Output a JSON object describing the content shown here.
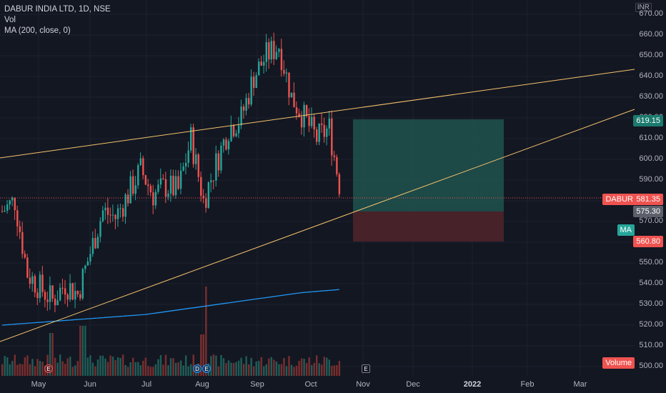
{
  "legend": {
    "symbol": "DABUR INDIA LTD, 1D, NSE",
    "vol": "Vol",
    "ma": "MA (200, close, 0)"
  },
  "currency": "INR",
  "price_axis": [
    "670.00",
    "660.00",
    "650.00",
    "640.00",
    "630.00",
    "620.00",
    "610.00",
    "600.00",
    "590.00",
    "580.00",
    "570.00",
    "560.00",
    "550.00",
    "540.00",
    "530.00",
    "520.00",
    "510.00",
    "500.00"
  ],
  "time_axis": [
    "May",
    "Jun",
    "Jul",
    "Aug",
    "Sep",
    "Oct",
    "Nov",
    "Dec",
    "2022",
    "Feb",
    "Mar"
  ],
  "tags": {
    "target": "619.15",
    "symbol_name": "DABUR",
    "last_price": "581.35",
    "entry": "575.30",
    "ma_name": "MA",
    "stop": "560.80",
    "volume": "Volume"
  },
  "events": [
    {
      "label": "E"
    },
    {
      "label": "D"
    },
    {
      "label": "E"
    },
    {
      "label": "E"
    }
  ],
  "colors": {
    "up": "#26a69a",
    "down": "#ef5350",
    "ma": "#2196f3",
    "trend": "#f5c26b",
    "target_zone": "#1f4f4b",
    "stop_zone": "#4a2329"
  },
  "chart_data": {
    "type": "candlestick",
    "instrument": "DABUR INDIA LTD",
    "interval": "1D",
    "exchange": "NSE",
    "ylim": [
      500,
      670
    ],
    "last": 581.35,
    "position": {
      "entry": 575.3,
      "target": 619.15,
      "stop": 560.8
    },
    "approx_closes": [
      {
        "date": "2021-04-20",
        "close": 575
      },
      {
        "date": "2021-04-27",
        "close": 580
      },
      {
        "date": "2021-05-04",
        "close": 545
      },
      {
        "date": "2021-05-11",
        "close": 538
      },
      {
        "date": "2021-05-18",
        "close": 532
      },
      {
        "date": "2021-05-25",
        "close": 540
      },
      {
        "date": "2021-06-01",
        "close": 535
      },
      {
        "date": "2021-06-08",
        "close": 555
      },
      {
        "date": "2021-06-15",
        "close": 575
      },
      {
        "date": "2021-06-22",
        "close": 572
      },
      {
        "date": "2021-06-29",
        "close": 583
      },
      {
        "date": "2021-07-06",
        "close": 595
      },
      {
        "date": "2021-07-13",
        "close": 583
      },
      {
        "date": "2021-07-20",
        "close": 587
      },
      {
        "date": "2021-07-27",
        "close": 585
      },
      {
        "date": "2021-08-03",
        "close": 610
      },
      {
        "date": "2021-08-10",
        "close": 580
      },
      {
        "date": "2021-08-17",
        "close": 598
      },
      {
        "date": "2021-08-24",
        "close": 615
      },
      {
        "date": "2021-08-31",
        "close": 620
      },
      {
        "date": "2021-09-07",
        "close": 640
      },
      {
        "date": "2021-09-14",
        "close": 650
      },
      {
        "date": "2021-09-21",
        "close": 655
      },
      {
        "date": "2021-09-28",
        "close": 630
      },
      {
        "date": "2021-10-05",
        "close": 620
      },
      {
        "date": "2021-10-12",
        "close": 610
      },
      {
        "date": "2021-10-19",
        "close": 615
      },
      {
        "date": "2021-10-26",
        "close": 581.35
      }
    ]
  }
}
